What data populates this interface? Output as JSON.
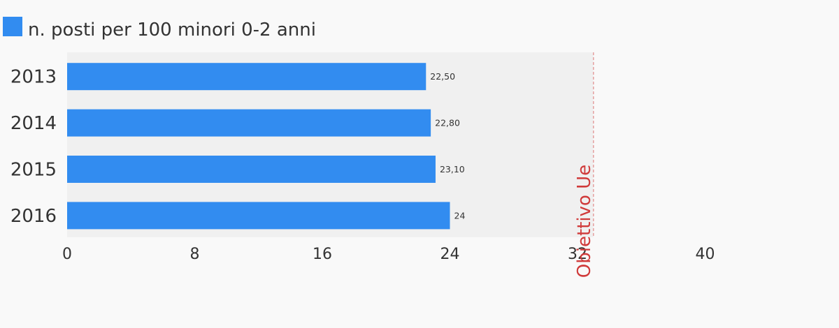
{
  "chart_data": {
    "type": "bar",
    "orientation": "horizontal",
    "categories": [
      "2013",
      "2014",
      "2015",
      "2016"
    ],
    "series": [
      {
        "name": "n. posti per 100 minori 0-2 anni",
        "values": [
          22.5,
          22.8,
          23.1,
          24
        ],
        "value_labels": [
          "22,50",
          "22,80",
          "23,10",
          "24"
        ],
        "color": "#328CF0"
      }
    ],
    "xlim": [
      0,
      40
    ],
    "x_ticks": [
      "0",
      "8",
      "16",
      "24",
      "32",
      "40"
    ],
    "x_tick_values": [
      0,
      8,
      16,
      24,
      32,
      40
    ],
    "reference_line": {
      "label": "Obiettivo Ue",
      "value": 33,
      "color": "#D03A3A"
    },
    "plot_background": "#F0F0F0",
    "page_background": "#F9F9F9",
    "legend_position": "top-left",
    "grid": false
  }
}
